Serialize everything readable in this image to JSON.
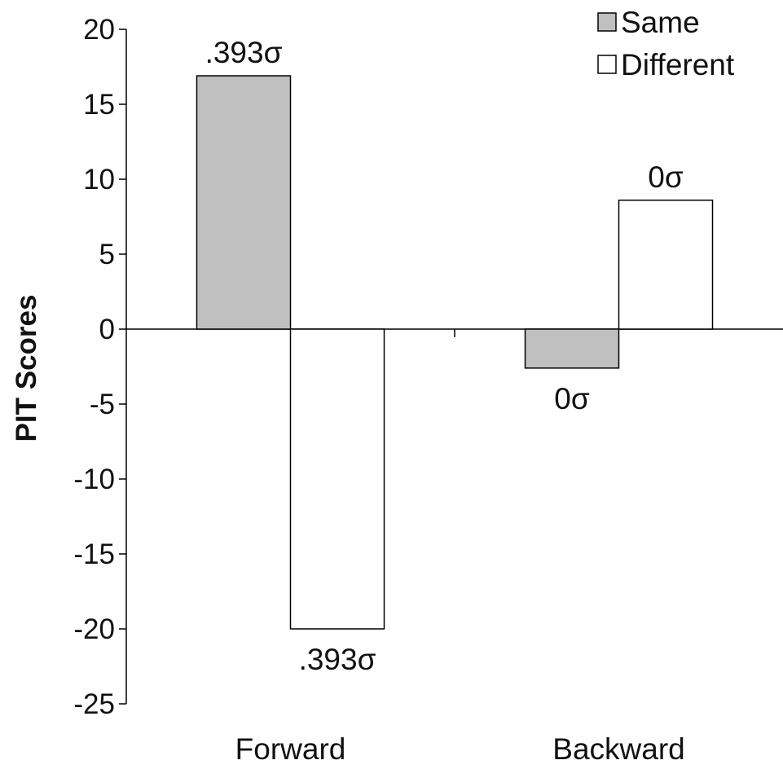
{
  "chart_data": {
    "type": "bar",
    "title": "",
    "xlabel": "",
    "ylabel": "PIT Scores",
    "categories": [
      "Forward",
      "Backward"
    ],
    "ylim": [
      -25,
      20
    ],
    "yticks": [
      20,
      15,
      10,
      5,
      0,
      -5,
      -10,
      -15,
      -20,
      -25
    ],
    "ytick_labels": [
      "20",
      "15",
      "10",
      "5",
      "0",
      "-5",
      "-10",
      "-15",
      "-20",
      "-25"
    ],
    "series": [
      {
        "name": "Same",
        "color": "#c0c0c0",
        "values": [
          16.9,
          -2.6
        ],
        "labels": [
          ".393σ",
          "0σ"
        ]
      },
      {
        "name": "Different",
        "color": "#ffffff",
        "values": [
          -20.0,
          8.6
        ],
        "labels": [
          ".393σ",
          "0σ"
        ]
      }
    ],
    "legend_position": "top-right",
    "grid": false
  }
}
